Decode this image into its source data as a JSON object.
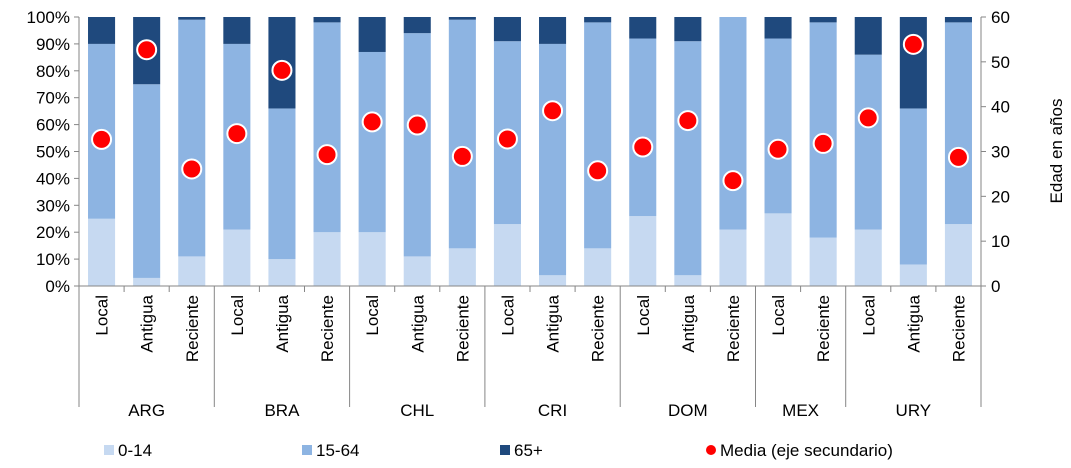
{
  "chart_data": {
    "type": "bar",
    "stacked": true,
    "groups": [
      {
        "name": "ARG",
        "categories": [
          "Local",
          "Antigua",
          "Reciente"
        ]
      },
      {
        "name": "BRA",
        "categories": [
          "Local",
          "Antigua",
          "Reciente"
        ]
      },
      {
        "name": "CHL",
        "categories": [
          "Local",
          "Antigua",
          "Reciente"
        ]
      },
      {
        "name": "CRI",
        "categories": [
          "Local",
          "Antigua",
          "Reciente"
        ]
      },
      {
        "name": "DOM",
        "categories": [
          "Local",
          "Antigua",
          "Reciente"
        ]
      },
      {
        "name": "MEX",
        "categories": [
          "Local",
          "Reciente"
        ]
      },
      {
        "name": "URY",
        "categories": [
          "Local",
          "Antigua",
          "Reciente"
        ]
      }
    ],
    "series": [
      {
        "name": "0-14",
        "color": "#c6d9f1",
        "values": [
          25,
          3,
          11,
          21,
          10,
          20,
          20,
          11,
          14,
          23,
          4,
          14,
          26,
          4,
          21,
          27,
          18,
          21,
          8,
          23
        ]
      },
      {
        "name": "15-64",
        "color": "#8db4e2",
        "values": [
          65,
          72,
          88,
          69,
          56,
          78,
          67,
          83,
          85,
          68,
          86,
          84,
          66,
          87,
          79,
          65,
          80,
          65,
          58,
          75
        ]
      },
      {
        "name": "65+",
        "color": "#1f497d",
        "values": [
          10,
          25,
          1,
          10,
          34,
          2,
          13,
          6,
          1,
          9,
          10,
          2,
          8,
          9,
          0,
          8,
          2,
          14,
          34,
          2
        ]
      },
      {
        "name": "Media (eje secundario)",
        "color": "#ff0000",
        "type": "scatter",
        "axis": "secondary",
        "values": [
          32.7,
          52.7,
          26.1,
          34.0,
          48.1,
          29.3,
          36.6,
          35.9,
          28.9,
          32.8,
          39.1,
          25.7,
          31.0,
          36.9,
          23.5,
          30.5,
          31.8,
          37.5,
          53.9,
          28.7
        ]
      }
    ],
    "y_axis": {
      "min": 0,
      "max": 100,
      "ticks": [
        "0%",
        "10%",
        "20%",
        "30%",
        "40%",
        "50%",
        "60%",
        "70%",
        "80%",
        "90%",
        "100%"
      ]
    },
    "y2_axis": {
      "min": 0,
      "max": 60,
      "label": "Edad en años",
      "ticks": [
        "0",
        "10",
        "20",
        "30",
        "40",
        "50",
        "60"
      ]
    },
    "legend": {
      "position": "bottom"
    }
  }
}
